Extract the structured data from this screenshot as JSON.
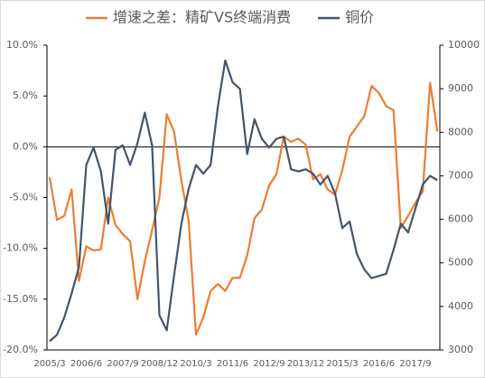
{
  "chart_data": {
    "type": "line",
    "categories": [
      "2005/3",
      null,
      null,
      null,
      null,
      "2006/6",
      null,
      null,
      null,
      null,
      "2007/9",
      null,
      null,
      null,
      null,
      "2008/12",
      null,
      null,
      null,
      null,
      "2010/3",
      null,
      null,
      null,
      null,
      "2011/6",
      null,
      null,
      null,
      null,
      "2012/9",
      null,
      null,
      null,
      null,
      "2013/12",
      null,
      null,
      null,
      null,
      "2015/3",
      null,
      null,
      null,
      null,
      "2016/6",
      null,
      null,
      null,
      null,
      "2017/9",
      null,
      null,
      null
    ],
    "series": [
      {
        "name": "增速之差：精矿VS终端消费",
        "color": "#ED7D31",
        "axis": "y",
        "values": [
          -3.0,
          -7.2,
          -6.8,
          -4.2,
          -13.2,
          -9.8,
          -10.2,
          -10.1,
          -5.0,
          -7.7,
          -8.6,
          -9.3,
          -15.0,
          -11.3,
          -8.2,
          -5.0,
          3.2,
          1.5,
          -3.3,
          -7.3,
          -18.5,
          -16.8,
          -14.2,
          -13.5,
          -14.2,
          -12.9,
          -12.9,
          -10.7,
          -7.0,
          -6.2,
          -3.8,
          -2.7,
          1.0,
          0.5,
          0.8,
          0.2,
          -3.2,
          -2.7,
          -4.2,
          -4.7,
          -2.3,
          1.0,
          2.0,
          3.0,
          6.0,
          5.3,
          4.0,
          3.6,
          -8.0,
          -6.8,
          -5.5,
          -4.4,
          6.3,
          1.5
        ]
      },
      {
        "name": "铜价",
        "color": "#44546A",
        "axis": "y2",
        "values": [
          3200,
          3350,
          3750,
          4300,
          4900,
          7250,
          7650,
          7100,
          5900,
          7600,
          7700,
          7250,
          7750,
          8450,
          7700,
          3800,
          3450,
          4700,
          5900,
          6700,
          7250,
          7050,
          7250,
          8600,
          9650,
          9150,
          9000,
          7500,
          8300,
          7850,
          7650,
          7850,
          7900,
          7150,
          7100,
          7150,
          7050,
          6800,
          7000,
          6600,
          5800,
          5950,
          5200,
          4850,
          4650,
          4700,
          4750,
          5300,
          5900,
          5700,
          6250,
          6800,
          7000,
          6900
        ]
      }
    ],
    "ylim": [
      -20,
      10
    ],
    "yticks": [
      {
        "value": -20,
        "label": "-20.0%"
      },
      {
        "value": -15,
        "label": "-15.0%"
      },
      {
        "value": -10,
        "label": "-10.0%"
      },
      {
        "value": -5,
        "label": "-5.0%"
      },
      {
        "value": 0,
        "label": "0.0%"
      },
      {
        "value": 5,
        "label": "5.0%"
      },
      {
        "value": 10,
        "label": "10.0%"
      }
    ],
    "y2lim": [
      3000,
      10000
    ],
    "y2ticks": [
      3000,
      4000,
      5000,
      6000,
      7000,
      8000,
      9000,
      10000
    ],
    "legend": "top"
  }
}
